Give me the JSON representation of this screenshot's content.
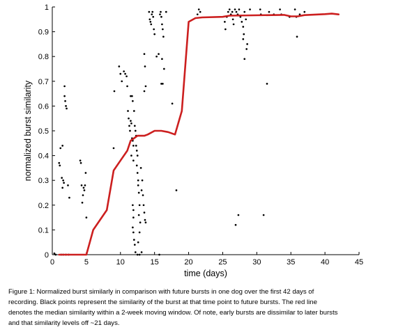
{
  "chart_data": {
    "type": "scatter",
    "xlabel": "time (days)",
    "ylabel": "normalized burst similarity",
    "xlim": [
      0,
      45
    ],
    "ylim": [
      0,
      1
    ],
    "xticks": [
      "0",
      "5",
      "10",
      "15",
      "20",
      "25",
      "30",
      "35",
      "40",
      "45"
    ],
    "yticks": [
      "0",
      "0.1",
      "0.2",
      "0.3",
      "0.4",
      "0.5",
      "0.6",
      "0.7",
      "0.8",
      "0.9",
      "1"
    ],
    "grid": false,
    "colors": {
      "points": "#000000",
      "median_line": "#cc1f1f"
    },
    "series": [
      {
        "kind": "points",
        "points": [
          [
            0.3,
            0.005
          ],
          [
            0.5,
            0.0
          ],
          [
            1.0,
            0.37
          ],
          [
            1.2,
            0.43
          ],
          [
            1.1,
            0.36
          ],
          [
            1.4,
            0.31
          ],
          [
            1.5,
            0.27
          ],
          [
            1.6,
            0.3
          ],
          [
            1.5,
            0.44
          ],
          [
            1.7,
            0.29
          ],
          [
            1.8,
            0.64
          ],
          [
            1.8,
            0.68
          ],
          [
            1.9,
            0.62
          ],
          [
            2.0,
            0.6
          ],
          [
            2.1,
            0.59
          ],
          [
            2.3,
            0.28
          ],
          [
            2.5,
            0.23
          ],
          [
            1.3,
            0.0
          ],
          [
            1.6,
            0.0
          ],
          [
            2.0,
            0.0
          ],
          [
            2.4,
            0.0
          ],
          [
            4.1,
            0.38
          ],
          [
            4.2,
            0.37
          ],
          [
            4.3,
            0.28
          ],
          [
            4.4,
            0.21
          ],
          [
            4.5,
            0.24
          ],
          [
            4.6,
            0.27
          ],
          [
            4.7,
            0.26
          ],
          [
            4.8,
            0.28
          ],
          [
            4.9,
            0.33
          ],
          [
            5.0,
            0.15
          ],
          [
            9.0,
            0.43
          ],
          [
            9.1,
            0.66
          ],
          [
            9.8,
            0.76
          ],
          [
            10.0,
            0.73
          ],
          [
            10.2,
            0.7
          ],
          [
            10.5,
            0.74
          ],
          [
            10.7,
            0.73
          ],
          [
            10.9,
            0.72
          ],
          [
            11.0,
            0.68
          ],
          [
            11.1,
            0.58
          ],
          [
            11.2,
            0.55
          ],
          [
            11.3,
            0.52
          ],
          [
            11.4,
            0.5
          ],
          [
            11.5,
            0.54
          ],
          [
            11.6,
            0.53
          ],
          [
            11.7,
            0.47
          ],
          [
            11.8,
            0.46
          ],
          [
            11.9,
            0.44
          ],
          [
            11.5,
            0.64
          ],
          [
            11.7,
            0.64
          ],
          [
            11.8,
            0.62
          ],
          [
            11.6,
            0.4
          ],
          [
            11.9,
            0.38
          ],
          [
            11.8,
            0.2
          ],
          [
            11.9,
            0.18
          ],
          [
            11.9,
            0.15
          ],
          [
            11.8,
            0.11
          ],
          [
            11.9,
            0.09
          ],
          [
            12.0,
            0.06
          ],
          [
            12.1,
            0.04
          ],
          [
            12.2,
            0.01
          ],
          [
            12.0,
            0.58
          ],
          [
            12.1,
            0.52
          ],
          [
            12.2,
            0.5
          ],
          [
            12.3,
            0.48
          ],
          [
            12.3,
            0.44
          ],
          [
            12.4,
            0.42
          ],
          [
            12.5,
            0.4
          ],
          [
            12.4,
            0.36
          ],
          [
            12.5,
            0.33
          ],
          [
            12.6,
            0.3
          ],
          [
            12.6,
            0.28
          ],
          [
            12.7,
            0.25
          ],
          [
            12.8,
            0.2
          ],
          [
            12.7,
            0.16
          ],
          [
            12.9,
            0.13
          ],
          [
            12.8,
            0.09
          ],
          [
            12.6,
            0.05
          ],
          [
            12.5,
            0.0
          ],
          [
            12.8,
            0.0
          ],
          [
            13.1,
            0.01
          ],
          [
            13.0,
            0.35
          ],
          [
            13.2,
            0.3
          ],
          [
            13.1,
            0.26
          ],
          [
            13.3,
            0.24
          ],
          [
            13.4,
            0.2
          ],
          [
            13.5,
            0.17
          ],
          [
            13.6,
            0.14
          ],
          [
            13.7,
            0.13
          ],
          [
            13.5,
            0.81
          ],
          [
            13.6,
            0.76
          ],
          [
            13.7,
            0.68
          ],
          [
            13.5,
            0.66
          ],
          [
            14.2,
            0.98
          ],
          [
            14.3,
            0.95
          ],
          [
            14.4,
            0.94
          ],
          [
            14.5,
            0.93
          ],
          [
            14.6,
            0.97
          ],
          [
            14.7,
            0.98
          ],
          [
            14.8,
            0.96
          ],
          [
            14.9,
            0.91
          ],
          [
            15.0,
            0.89
          ],
          [
            15.3,
            0.8
          ],
          [
            15.6,
            0.81
          ],
          [
            15.8,
            0.97
          ],
          [
            15.9,
            0.98
          ],
          [
            16.0,
            0.96
          ],
          [
            16.1,
            0.93
          ],
          [
            16.2,
            0.91
          ],
          [
            16.3,
            0.88
          ],
          [
            16.1,
            0.79
          ],
          [
            16.4,
            0.75
          ],
          [
            16.0,
            0.69
          ],
          [
            16.2,
            0.69
          ],
          [
            16.7,
            0.98
          ],
          [
            15.7,
            0.0
          ],
          [
            17.6,
            0.61
          ],
          [
            18.2,
            0.26
          ],
          [
            21.3,
            0.97
          ],
          [
            21.5,
            0.99
          ],
          [
            21.7,
            0.98
          ],
          [
            25.3,
            0.94
          ],
          [
            25.4,
            0.91
          ],
          [
            25.6,
            0.96
          ],
          [
            25.8,
            0.98
          ],
          [
            26.0,
            0.99
          ],
          [
            26.2,
            0.97
          ],
          [
            26.4,
            0.98
          ],
          [
            26.5,
            0.95
          ],
          [
            26.6,
            0.93
          ],
          [
            26.8,
            0.99
          ],
          [
            27.0,
            0.98
          ],
          [
            27.2,
            0.97
          ],
          [
            27.4,
            0.99
          ],
          [
            27.6,
            0.96
          ],
          [
            27.8,
            0.94
          ],
          [
            28.0,
            0.92
          ],
          [
            28.1,
            0.89
          ],
          [
            28.0,
            0.87
          ],
          [
            28.2,
            0.98
          ],
          [
            28.4,
            0.95
          ],
          [
            28.5,
            0.83
          ],
          [
            28.6,
            0.85
          ],
          [
            28.2,
            0.79
          ],
          [
            29.0,
            0.99
          ],
          [
            26.9,
            0.12
          ],
          [
            27.3,
            0.16
          ],
          [
            30.5,
            0.99
          ],
          [
            30.6,
            0.97
          ],
          [
            31.0,
            0.16
          ],
          [
            31.5,
            0.69
          ],
          [
            31.8,
            0.98
          ],
          [
            32.5,
            0.97
          ],
          [
            33.4,
            0.99
          ],
          [
            33.6,
            0.97
          ],
          [
            34.8,
            0.96
          ],
          [
            35.6,
            0.99
          ],
          [
            35.8,
            0.96
          ],
          [
            35.9,
            0.88
          ],
          [
            36.3,
            0.97
          ],
          [
            37.0,
            0.98
          ]
        ]
      },
      {
        "kind": "median",
        "points": [
          [
            1.0,
            0.0
          ],
          [
            5.0,
            0.0
          ],
          [
            6.0,
            0.1
          ],
          [
            8.0,
            0.18
          ],
          [
            9.0,
            0.34
          ],
          [
            10.0,
            0.38
          ],
          [
            11.0,
            0.42
          ],
          [
            11.5,
            0.46
          ],
          [
            12.0,
            0.47
          ],
          [
            12.5,
            0.48
          ],
          [
            13.5,
            0.48
          ],
          [
            14.0,
            0.485
          ],
          [
            15.0,
            0.5
          ],
          [
            16.0,
            0.5
          ],
          [
            17.0,
            0.495
          ],
          [
            18.0,
            0.485
          ],
          [
            19.0,
            0.58
          ],
          [
            20.0,
            0.94
          ],
          [
            21.0,
            0.955
          ],
          [
            22.0,
            0.958
          ],
          [
            25.0,
            0.96
          ],
          [
            26.0,
            0.965
          ],
          [
            34.0,
            0.968
          ],
          [
            35.0,
            0.962
          ],
          [
            36.0,
            0.962
          ],
          [
            37.0,
            0.967
          ],
          [
            40.0,
            0.971
          ],
          [
            41.0,
            0.973
          ],
          [
            42.0,
            0.97
          ]
        ]
      }
    ]
  },
  "caption": {
    "lines": [
      "Figure 1: Normalized burst similarly in comparison with future bursts in one dog over the first 42 days of",
      "recording. Black points represent the similarity of the burst at that time point to future bursts. The red line",
      "denotes the median similarity within a 2-week moving window. Of note, early bursts are dissimilar to later bursts",
      "and that similarity levels off ~21 days."
    ]
  }
}
